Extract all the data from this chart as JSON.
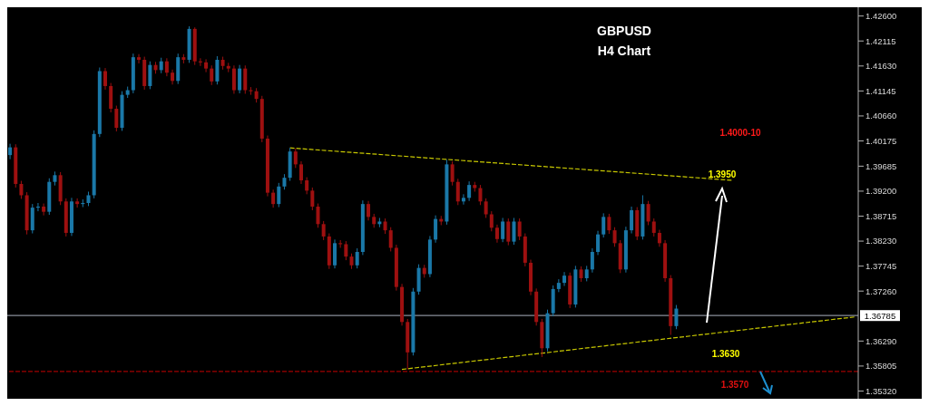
{
  "chart_data": {
    "type": "candlestick",
    "title": "GBPUSD",
    "subtitle": "H4 Chart",
    "tick_labels": "y",
    "line_style": "dashed",
    "categories": [
      null,
      null,
      null,
      null,
      null,
      null,
      null,
      null,
      null,
      null,
      null,
      null,
      null,
      null,
      null,
      null,
      null,
      null,
      null,
      null,
      null,
      null,
      null,
      null,
      null,
      null,
      null,
      null,
      null,
      null,
      null,
      null,
      null,
      null,
      null,
      null,
      null,
      null,
      null,
      null,
      null,
      null,
      null,
      null,
      null,
      null,
      null,
      null,
      null,
      null,
      null,
      null,
      null,
      null,
      null,
      null,
      null,
      null,
      null,
      null,
      null,
      null,
      null,
      null,
      null,
      null,
      null,
      null,
      null,
      null,
      null,
      null,
      null,
      null,
      null,
      null,
      null,
      null,
      null,
      null,
      null,
      null,
      null,
      null,
      null,
      null,
      null,
      null,
      null,
      null,
      null,
      null,
      null,
      null,
      null,
      null,
      null,
      null,
      null,
      null,
      null,
      null,
      null,
      null,
      null,
      null,
      null,
      null,
      null,
      null,
      null,
      null,
      null,
      null,
      null,
      null,
      null,
      null,
      null,
      null,
      null,
      null,
      null,
      null,
      null,
      null,
      null,
      null,
      null,
      null,
      null,
      null,
      null,
      null,
      null,
      null,
      null,
      null,
      null,
      null,
      null,
      null,
      null,
      null,
      null,
      null,
      null,
      null,
      null,
      null,
      null,
      null
    ],
    "ohlc": [
      [
        1.399,
        1.4012,
        1.3982,
        1.4005
      ],
      [
        1.4005,
        1.4011,
        1.3927,
        1.3934
      ],
      [
        1.3934,
        1.394,
        1.3905,
        1.3912
      ],
      [
        1.3912,
        1.3918,
        1.3836,
        1.3844
      ],
      [
        1.3844,
        1.3895,
        1.3838,
        1.3888
      ],
      [
        1.3888,
        1.3897,
        1.3881,
        1.389
      ],
      [
        1.389,
        1.3896,
        1.3873,
        1.388
      ],
      [
        1.388,
        1.3945,
        1.3874,
        1.3938
      ],
      [
        1.3938,
        1.3958,
        1.3931,
        1.3951
      ],
      [
        1.3951,
        1.3957,
        1.3893,
        1.39
      ],
      [
        1.39,
        1.3906,
        1.3832,
        1.3839
      ],
      [
        1.3839,
        1.3907,
        1.3833,
        1.39
      ],
      [
        1.39,
        1.3906,
        1.3888,
        1.3895
      ],
      [
        1.3895,
        1.3904,
        1.3889,
        1.3897
      ],
      [
        1.3897,
        1.3919,
        1.3891,
        1.3912
      ],
      [
        1.3912,
        1.4038,
        1.3906,
        1.4031
      ],
      [
        1.4031,
        1.416,
        1.4025,
        1.4153
      ],
      [
        1.4153,
        1.4159,
        1.4117,
        1.4124
      ],
      [
        1.4124,
        1.413,
        1.4073,
        1.408
      ],
      [
        1.408,
        1.4086,
        1.4036,
        1.4043
      ],
      [
        1.4043,
        1.4114,
        1.4037,
        1.4107
      ],
      [
        1.4107,
        1.4123,
        1.4101,
        1.4116
      ],
      [
        1.4116,
        1.4187,
        1.411,
        1.418
      ],
      [
        1.418,
        1.4186,
        1.4168,
        1.4175
      ],
      [
        1.4175,
        1.4181,
        1.4117,
        1.4124
      ],
      [
        1.4124,
        1.4172,
        1.4118,
        1.4165
      ],
      [
        1.4165,
        1.4171,
        1.4148,
        1.4155
      ],
      [
        1.4155,
        1.4179,
        1.4149,
        1.4172
      ],
      [
        1.4172,
        1.4178,
        1.4143,
        1.415
      ],
      [
        1.415,
        1.4156,
        1.4127,
        1.4134
      ],
      [
        1.4134,
        1.4187,
        1.4128,
        1.418
      ],
      [
        1.418,
        1.4186,
        1.4168,
        1.4175
      ],
      [
        1.4175,
        1.424,
        1.4169,
        1.4235
      ],
      [
        1.4235,
        1.4238,
        1.4165,
        1.4172
      ],
      [
        1.4172,
        1.4178,
        1.4163,
        1.417
      ],
      [
        1.417,
        1.4176,
        1.4151,
        1.4158
      ],
      [
        1.4158,
        1.4164,
        1.4126,
        1.4133
      ],
      [
        1.4133,
        1.4182,
        1.4127,
        1.4175
      ],
      [
        1.4175,
        1.4181,
        1.4156,
        1.4163
      ],
      [
        1.4163,
        1.4169,
        1.4151,
        1.4158
      ],
      [
        1.4158,
        1.4164,
        1.4109,
        1.4116
      ],
      [
        1.4116,
        1.4165,
        1.411,
        1.4158
      ],
      [
        1.4158,
        1.4164,
        1.4109,
        1.4116
      ],
      [
        1.4116,
        1.4122,
        1.4107,
        1.4114
      ],
      [
        1.4114,
        1.412,
        1.4092,
        1.4099
      ],
      [
        1.4099,
        1.4105,
        1.4015,
        1.4022
      ],
      [
        1.4022,
        1.4028,
        1.391,
        1.3917
      ],
      [
        1.3917,
        1.3923,
        1.3888,
        1.3895
      ],
      [
        1.3895,
        1.3936,
        1.3889,
        1.3929
      ],
      [
        1.3929,
        1.3953,
        1.3923,
        1.3946
      ],
      [
        1.3946,
        1.4004,
        1.394,
        1.3997
      ],
      [
        1.3997,
        1.4003,
        1.3965,
        1.3972
      ],
      [
        1.3972,
        1.3978,
        1.3934,
        1.3941
      ],
      [
        1.3941,
        1.3947,
        1.3914,
        1.3921
      ],
      [
        1.3921,
        1.3927,
        1.3883,
        1.389
      ],
      [
        1.389,
        1.3896,
        1.3849,
        1.3856
      ],
      [
        1.3856,
        1.3862,
        1.3825,
        1.3832
      ],
      [
        1.3832,
        1.3838,
        1.3769,
        1.3776
      ],
      [
        1.3776,
        1.3826,
        1.377,
        1.3819
      ],
      [
        1.3819,
        1.3825,
        1.381,
        1.3817
      ],
      [
        1.3817,
        1.3823,
        1.3786,
        1.3793
      ],
      [
        1.3793,
        1.3799,
        1.3769,
        1.3776
      ],
      [
        1.3776,
        1.3809,
        1.377,
        1.3802
      ],
      [
        1.3802,
        1.3902,
        1.3796,
        1.3895
      ],
      [
        1.3895,
        1.3901,
        1.3863,
        1.387
      ],
      [
        1.387,
        1.3876,
        1.3849,
        1.3856
      ],
      [
        1.3856,
        1.3868,
        1.385,
        1.3861
      ],
      [
        1.3861,
        1.3867,
        1.3837,
        1.3844
      ],
      [
        1.3844,
        1.385,
        1.3803,
        1.381
      ],
      [
        1.381,
        1.3816,
        1.3727,
        1.3734
      ],
      [
        1.3734,
        1.374,
        1.3659,
        1.3666
      ],
      [
        1.3666,
        1.3672,
        1.3574,
        1.3607
      ],
      [
        1.3607,
        1.3732,
        1.3601,
        1.3725
      ],
      [
        1.3725,
        1.3778,
        1.3719,
        1.3771
      ],
      [
        1.3771,
        1.3777,
        1.3752,
        1.3759
      ],
      [
        1.3759,
        1.3833,
        1.3753,
        1.3826
      ],
      [
        1.3826,
        1.3873,
        1.382,
        1.3866
      ],
      [
        1.3866,
        1.3872,
        1.3854,
        1.3861
      ],
      [
        1.3861,
        1.3981,
        1.3855,
        1.3972
      ],
      [
        1.3972,
        1.3978,
        1.3931,
        1.3938
      ],
      [
        1.3938,
        1.3944,
        1.3893,
        1.39
      ],
      [
        1.39,
        1.3914,
        1.3894,
        1.3907
      ],
      [
        1.3907,
        1.3939,
        1.3901,
        1.3932
      ],
      [
        1.3932,
        1.3938,
        1.3919,
        1.3926
      ],
      [
        1.3926,
        1.3932,
        1.3893,
        1.39
      ],
      [
        1.39,
        1.3906,
        1.3868,
        1.3875
      ],
      [
        1.3875,
        1.3881,
        1.3842,
        1.3849
      ],
      [
        1.3849,
        1.3855,
        1.382,
        1.3827
      ],
      [
        1.3827,
        1.3868,
        1.3821,
        1.3861
      ],
      [
        1.3861,
        1.3867,
        1.3815,
        1.3822
      ],
      [
        1.3822,
        1.3868,
        1.3816,
        1.3861
      ],
      [
        1.3861,
        1.3867,
        1.3825,
        1.3832
      ],
      [
        1.3832,
        1.3838,
        1.3774,
        1.3781
      ],
      [
        1.3781,
        1.3787,
        1.3718,
        1.3725
      ],
      [
        1.3725,
        1.3731,
        1.3659,
        1.3666
      ],
      [
        1.3666,
        1.3672,
        1.3598,
        1.3615
      ],
      [
        1.3615,
        1.369,
        1.3609,
        1.3683
      ],
      [
        1.3683,
        1.3737,
        1.3677,
        1.373
      ],
      [
        1.373,
        1.3749,
        1.3724,
        1.3742
      ],
      [
        1.3742,
        1.3763,
        1.3736,
        1.3756
      ],
      [
        1.3756,
        1.3762,
        1.3693,
        1.37
      ],
      [
        1.37,
        1.3775,
        1.3694,
        1.3768
      ],
      [
        1.3768,
        1.3774,
        1.3744,
        1.3751
      ],
      [
        1.3751,
        1.3775,
        1.3745,
        1.3768
      ],
      [
        1.3768,
        1.3809,
        1.3762,
        1.3802
      ],
      [
        1.3802,
        1.3843,
        1.3796,
        1.3836
      ],
      [
        1.3836,
        1.3877,
        1.383,
        1.387
      ],
      [
        1.387,
        1.3876,
        1.3837,
        1.3844
      ],
      [
        1.3844,
        1.385,
        1.3812,
        1.3819
      ],
      [
        1.3819,
        1.3825,
        1.3761,
        1.3768
      ],
      [
        1.3768,
        1.3851,
        1.3762,
        1.3844
      ],
      [
        1.3844,
        1.389,
        1.3838,
        1.3883
      ],
      [
        1.3883,
        1.3889,
        1.3825,
        1.3832
      ],
      [
        1.3832,
        1.3912,
        1.3826,
        1.3895
      ],
      [
        1.3895,
        1.3901,
        1.3854,
        1.3861
      ],
      [
        1.3861,
        1.3867,
        1.3832,
        1.3839
      ],
      [
        1.3839,
        1.3845,
        1.3812,
        1.3819
      ],
      [
        1.3819,
        1.3825,
        1.3744,
        1.3751
      ],
      [
        1.3751,
        1.3757,
        1.3641,
        1.3658
      ],
      [
        1.3658,
        1.3699,
        1.3652,
        1.3692
      ],
      null,
      null,
      null,
      null,
      null,
      null,
      null,
      null,
      null,
      null,
      null,
      null,
      null,
      null,
      null,
      null,
      null,
      null,
      null,
      null,
      null,
      null,
      null,
      null,
      null,
      null,
      null,
      null,
      null,
      null,
      null,
      null
    ],
    "colors": [
      "#1a78a8",
      "#9e1010",
      "#9e1010",
      "#9e1010",
      "#1a78a8",
      "#1a78a8",
      "#9e1010",
      "#1a78a8",
      "#1a78a8",
      "#9e1010",
      "#9e1010",
      "#1a78a8",
      "#9e1010",
      "#1a78a8",
      "#1a78a8",
      "#1a78a8",
      "#1a78a8",
      "#9e1010",
      "#9e1010",
      "#9e1010",
      "#1a78a8",
      "#1a78a8",
      "#1a78a8",
      "#9e1010",
      "#9e1010",
      "#1a78a8",
      "#9e1010",
      "#1a78a8",
      "#9e1010",
      "#9e1010",
      "#1a78a8",
      "#9e1010",
      "#1a78a8",
      "#9e1010",
      "#9e1010",
      "#9e1010",
      "#9e1010",
      "#1a78a8",
      "#9e1010",
      "#9e1010",
      "#9e1010",
      "#1a78a8",
      "#9e1010",
      "#9e1010",
      "#9e1010",
      "#9e1010",
      "#9e1010",
      "#9e1010",
      "#1a78a8",
      "#1a78a8",
      "#1a78a8",
      "#9e1010",
      "#9e1010",
      "#9e1010",
      "#9e1010",
      "#9e1010",
      "#9e1010",
      "#9e1010",
      "#1a78a8",
      "#9e1010",
      "#9e1010",
      "#9e1010",
      "#1a78a8",
      "#1a78a8",
      "#9e1010",
      "#9e1010",
      "#1a78a8",
      "#9e1010",
      "#9e1010",
      "#9e1010",
      "#9e1010",
      "#9e1010",
      "#1a78a8",
      "#1a78a8",
      "#9e1010",
      "#1a78a8",
      "#1a78a8",
      "#9e1010",
      "#1a78a8",
      "#9e1010",
      "#9e1010",
      "#1a78a8",
      "#1a78a8",
      "#9e1010",
      "#9e1010",
      "#9e1010",
      "#9e1010",
      "#9e1010",
      "#1a78a8",
      "#9e1010",
      "#1a78a8",
      "#9e1010",
      "#9e1010",
      "#9e1010",
      "#9e1010",
      "#9e1010",
      "#1a78a8",
      "#1a78a8",
      "#1a78a8",
      "#1a78a8",
      "#9e1010",
      "#1a78a8",
      "#9e1010",
      "#1a78a8",
      "#1a78a8",
      "#1a78a8",
      "#1a78a8",
      "#9e1010",
      "#9e1010",
      "#9e1010",
      "#1a78a8",
      "#1a78a8",
      "#9e1010",
      "#1a78a8",
      "#9e1010",
      "#9e1010",
      "#9e1010",
      "#9e1010",
      "#9e1010",
      "#1a78a8",
      null,
      null,
      null,
      null,
      null,
      null,
      null,
      null,
      null,
      null,
      null,
      null,
      null,
      null,
      null,
      null,
      null,
      null,
      null,
      null,
      null,
      null,
      null,
      null,
      null,
      null,
      null,
      null,
      null,
      null,
      null,
      null
    ],
    "series": [
      {
        "type": "line",
        "color": "#c8c800",
        "values": [
          null,
          null,
          null,
          null,
          null,
          null,
          null,
          null,
          null,
          null,
          null,
          null,
          null,
          null,
          null,
          null,
          null,
          null,
          null,
          null,
          null,
          null,
          null,
          null,
          null,
          null,
          null,
          null,
          null,
          null,
          null,
          null,
          null,
          null,
          null,
          null,
          null,
          null,
          null,
          null,
          null,
          null,
          null,
          null,
          null,
          null,
          null,
          null,
          null,
          null,
          1.4004,
          null,
          null,
          null,
          null,
          null,
          null,
          null,
          null,
          null,
          null,
          null,
          null,
          null,
          null,
          null,
          null,
          null,
          null,
          null,
          null,
          null,
          null,
          null,
          null,
          null,
          null,
          null,
          null,
          null,
          null,
          null,
          null,
          null,
          null,
          null,
          null,
          null,
          null,
          null,
          null,
          null,
          null,
          null,
          null,
          null,
          null,
          null,
          null,
          null,
          null,
          null,
          null,
          null,
          null,
          null,
          null,
          null,
          null,
          null,
          null,
          null,
          null,
          null,
          null,
          null,
          null,
          null,
          null,
          null,
          null,
          null,
          null,
          null,
          null,
          null,
          null,
          null,
          null,
          1.3941,
          null,
          null,
          null,
          null,
          null,
          null,
          null,
          null,
          null,
          null,
          null,
          null,
          null,
          null,
          null,
          null,
          null,
          null,
          null,
          null,
          null,
          null
        ]
      },
      {
        "type": "line",
        "color": "#c8c800",
        "values": [
          null,
          null,
          null,
          null,
          null,
          null,
          null,
          null,
          null,
          null,
          null,
          null,
          null,
          null,
          null,
          null,
          null,
          null,
          null,
          null,
          null,
          null,
          null,
          null,
          null,
          null,
          null,
          null,
          null,
          null,
          null,
          null,
          null,
          null,
          null,
          null,
          null,
          null,
          null,
          null,
          null,
          null,
          null,
          null,
          null,
          null,
          null,
          null,
          null,
          null,
          null,
          null,
          null,
          null,
          null,
          null,
          null,
          null,
          null,
          null,
          null,
          null,
          null,
          null,
          null,
          null,
          null,
          null,
          null,
          null,
          1.3574,
          null,
          null,
          null,
          null,
          null,
          null,
          null,
          null,
          null,
          null,
          null,
          null,
          null,
          null,
          null,
          null,
          null,
          null,
          null,
          null,
          null,
          null,
          null,
          null,
          null,
          null,
          null,
          null,
          null,
          null,
          null,
          null,
          null,
          null,
          null,
          null,
          null,
          null,
          null,
          null,
          null,
          null,
          null,
          null,
          null,
          null,
          null,
          null,
          null,
          null,
          null,
          null,
          null,
          null,
          null,
          null,
          null,
          null,
          null,
          null,
          null,
          null,
          null,
          null,
          null,
          null,
          null,
          null,
          null,
          null,
          null,
          null,
          null,
          null,
          null,
          null,
          null,
          null,
          null,
          null,
          1.3676
        ]
      }
    ],
    "ylim": [
      1.3517,
      1.4277
    ],
    "yticks": [
      {
        "value": 1.426,
        "label": "1.42600"
      },
      {
        "value": 1.42115,
        "label": "1.42115"
      },
      {
        "value": 1.4163,
        "label": "1.41630"
      },
      {
        "value": 1.41145,
        "label": "1.41145"
      },
      {
        "value": 1.4066,
        "label": "1.40660"
      },
      {
        "value": 1.40175,
        "label": "1.40175"
      },
      {
        "value": 1.39685,
        "label": "1.39685"
      },
      {
        "value": 1.392,
        "label": "1.39200"
      },
      {
        "value": 1.38715,
        "label": "1.38715"
      },
      {
        "value": 1.3823,
        "label": "1.38230"
      },
      {
        "value": 1.37745,
        "label": "1.37745"
      },
      {
        "value": 1.3726,
        "label": "1.37260"
      },
      {
        "value": 1.3629,
        "label": "1.36290"
      },
      {
        "value": 1.35805,
        "label": "1.35805"
      },
      {
        "value": 1.3532,
        "label": "1.35320"
      }
    ],
    "ref_lines": [
      {
        "axis": "y",
        "value": 1.36785,
        "label": "1.36785",
        "color": "#8a8f99",
        "line_style": "solid"
      },
      {
        "axis": "y",
        "value": 1.357,
        "label": "1.3570",
        "color": "#a00000",
        "line_style": "dashed"
      }
    ],
    "annotations": [
      "1.4000-10",
      "1.3950",
      "1.3630"
    ]
  }
}
